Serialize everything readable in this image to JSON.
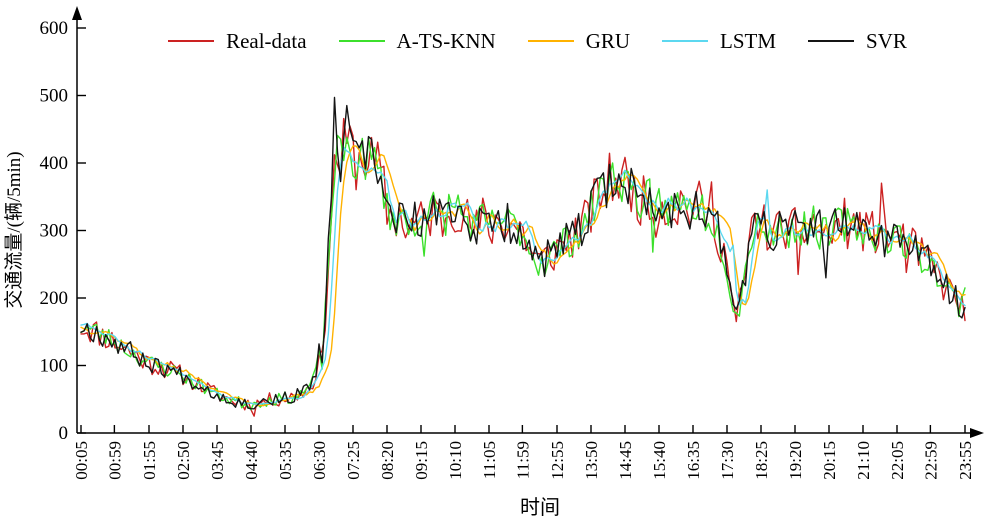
{
  "figure": {
    "background": "#ffffff",
    "axis_color": "#000000"
  },
  "chart_data": {
    "type": "line",
    "title": "",
    "xlabel": "时间",
    "ylabel": "交通流量/(辆/5min)",
    "legend_position": "top",
    "grid": false,
    "ylim": [
      0,
      620
    ],
    "y_ticks": [
      0,
      100,
      200,
      300,
      400,
      500,
      600
    ],
    "x_ticks": [
      "00:05",
      "00:59",
      "01:55",
      "02:50",
      "03:45",
      "04:40",
      "05:35",
      "06:30",
      "07:25",
      "08:20",
      "09:15",
      "10:10",
      "11:05",
      "11:59",
      "12:55",
      "13:50",
      "14:45",
      "15:40",
      "16:35",
      "17:30",
      "18:25",
      "19:20",
      "20:15",
      "21:10",
      "22:05",
      "22:59",
      "23:55"
    ],
    "sample_interval_min": 5,
    "x_minutes_range": [
      5,
      1435
    ],
    "trend_anchors": [
      [
        5,
        158
      ],
      [
        30,
        150
      ],
      [
        60,
        135
      ],
      [
        90,
        118
      ],
      [
        115,
        103
      ],
      [
        145,
        95
      ],
      [
        170,
        85
      ],
      [
        200,
        70
      ],
      [
        225,
        57
      ],
      [
        250,
        48
      ],
      [
        280,
        42
      ],
      [
        300,
        47
      ],
      [
        320,
        50
      ],
      [
        340,
        52
      ],
      [
        355,
        56
      ],
      [
        368,
        62
      ],
      [
        380,
        75
      ],
      [
        390,
        112
      ],
      [
        396,
        105
      ],
      [
        403,
        225
      ],
      [
        410,
        330
      ],
      [
        418,
        420
      ],
      [
        424,
        395
      ],
      [
        432,
        430
      ],
      [
        440,
        415
      ],
      [
        452,
        400
      ],
      [
        465,
        410
      ],
      [
        480,
        398
      ],
      [
        492,
        380
      ],
      [
        500,
        330
      ],
      [
        510,
        318
      ],
      [
        520,
        325
      ],
      [
        535,
        300
      ],
      [
        550,
        318
      ],
      [
        560,
        308
      ],
      [
        575,
        330
      ],
      [
        590,
        315
      ],
      [
        605,
        340
      ],
      [
        620,
        330
      ],
      [
        632,
        312
      ],
      [
        645,
        300
      ],
      [
        655,
        318
      ],
      [
        665,
        300
      ],
      [
        680,
        318
      ],
      [
        695,
        310
      ],
      [
        710,
        308
      ],
      [
        719,
        300
      ],
      [
        730,
        275
      ],
      [
        740,
        258
      ],
      [
        750,
        252
      ],
      [
        762,
        262
      ],
      [
        775,
        272
      ],
      [
        788,
        282
      ],
      [
        800,
        290
      ],
      [
        812,
        300
      ],
      [
        825,
        318
      ],
      [
        838,
        345
      ],
      [
        850,
        362
      ],
      [
        862,
        375
      ],
      [
        875,
        378
      ],
      [
        885,
        375
      ],
      [
        895,
        362
      ],
      [
        905,
        352
      ],
      [
        915,
        342
      ],
      [
        925,
        345
      ],
      [
        932,
        318
      ],
      [
        940,
        340
      ],
      [
        952,
        335
      ],
      [
        965,
        330
      ],
      [
        975,
        345
      ],
      [
        985,
        330
      ],
      [
        1000,
        340
      ],
      [
        1012,
        330
      ],
      [
        1025,
        318
      ],
      [
        1035,
        300
      ],
      [
        1048,
        262
      ],
      [
        1058,
        195
      ],
      [
        1066,
        182
      ],
      [
        1072,
        195
      ],
      [
        1080,
        240
      ],
      [
        1090,
        300
      ],
      [
        1098,
        318
      ],
      [
        1105,
        310
      ],
      [
        1115,
        302
      ],
      [
        1125,
        290
      ],
      [
        1135,
        302
      ],
      [
        1145,
        308
      ],
      [
        1155,
        295
      ],
      [
        1165,
        310
      ],
      [
        1175,
        300
      ],
      [
        1190,
        312
      ],
      [
        1205,
        295
      ],
      [
        1215,
        288
      ],
      [
        1225,
        305
      ],
      [
        1240,
        312
      ],
      [
        1252,
        300
      ],
      [
        1262,
        308
      ],
      [
        1275,
        295
      ],
      [
        1290,
        298
      ],
      [
        1305,
        290
      ],
      [
        1318,
        295
      ],
      [
        1330,
        288
      ],
      [
        1340,
        280
      ],
      [
        1352,
        270
      ],
      [
        1365,
        262
      ],
      [
        1380,
        250
      ],
      [
        1395,
        228
      ],
      [
        1410,
        210
      ],
      [
        1425,
        192
      ],
      [
        1435,
        185
      ]
    ],
    "series": [
      {
        "name": "Real-data",
        "color": "#cc2222",
        "noise": 1.6,
        "lag": 0,
        "smooth": 0,
        "seed": 11,
        "overrides": [
          [
            285,
            25
          ],
          [
            390,
            115
          ],
          [
            440,
            455
          ],
          [
            1025,
            372
          ],
          [
            1066,
            165
          ],
          [
            1165,
            235
          ],
          [
            1300,
            370
          ],
          [
            1338,
            238
          ]
        ]
      },
      {
        "name": "A-TS-KNN",
        "color": "#3ce02c",
        "noise": 1.3,
        "lag": 0,
        "smooth": 0,
        "seed": 23,
        "overrides": [
          [
            560,
            262
          ],
          [
            930,
            268
          ],
          [
            1435,
            215
          ]
        ]
      },
      {
        "name": "GRU",
        "color": "#ffb200",
        "noise": 0.9,
        "lag": 15,
        "smooth": 3,
        "seed": 37,
        "overrides": []
      },
      {
        "name": "LSTM",
        "color": "#5cd8f0",
        "noise": 0.85,
        "lag": 8,
        "smooth": 3,
        "seed": 51,
        "overrides": [
          [
            1060,
            278
          ],
          [
            1074,
            198
          ],
          [
            1115,
            360
          ]
        ]
      },
      {
        "name": "SVR",
        "color": "#151515",
        "noise": 1.35,
        "lag": 0,
        "smooth": 0,
        "seed": 67,
        "overrides": [
          [
            388,
            132
          ],
          [
            404,
            288
          ],
          [
            415,
            497
          ],
          [
            433,
            485
          ],
          [
            1210,
            230
          ]
        ]
      }
    ]
  }
}
